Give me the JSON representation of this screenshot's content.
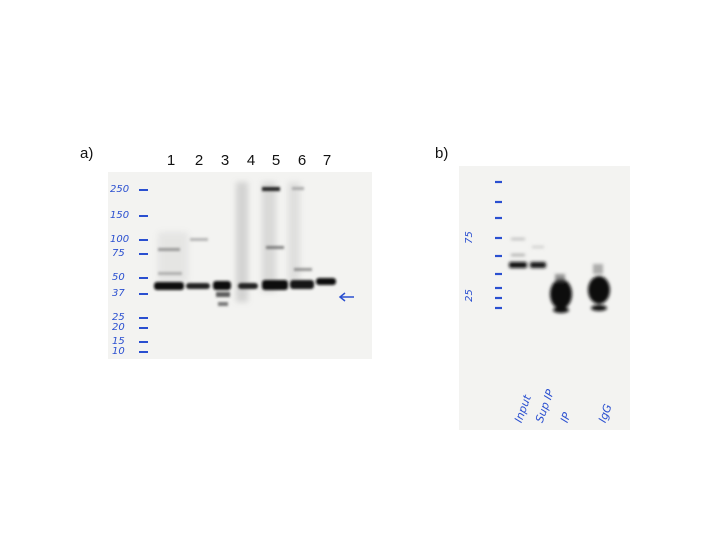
{
  "panel_a": {
    "label": "a)",
    "lanes": [
      "1",
      "2",
      "3",
      "4",
      "5",
      "6",
      "7"
    ],
    "markers": [
      "250",
      "150",
      "100",
      "75",
      "50",
      "37",
      "25",
      "20",
      "15",
      "10"
    ]
  },
  "panel_b": {
    "label": "b)",
    "markers": [
      "75",
      "25"
    ],
    "lane_labels": [
      "Input",
      "Sup IP",
      "IP",
      "IgG"
    ]
  },
  "colors": {
    "ink": "#2a4fd0",
    "band": "#111111",
    "membrane": "#f3f3f1"
  }
}
